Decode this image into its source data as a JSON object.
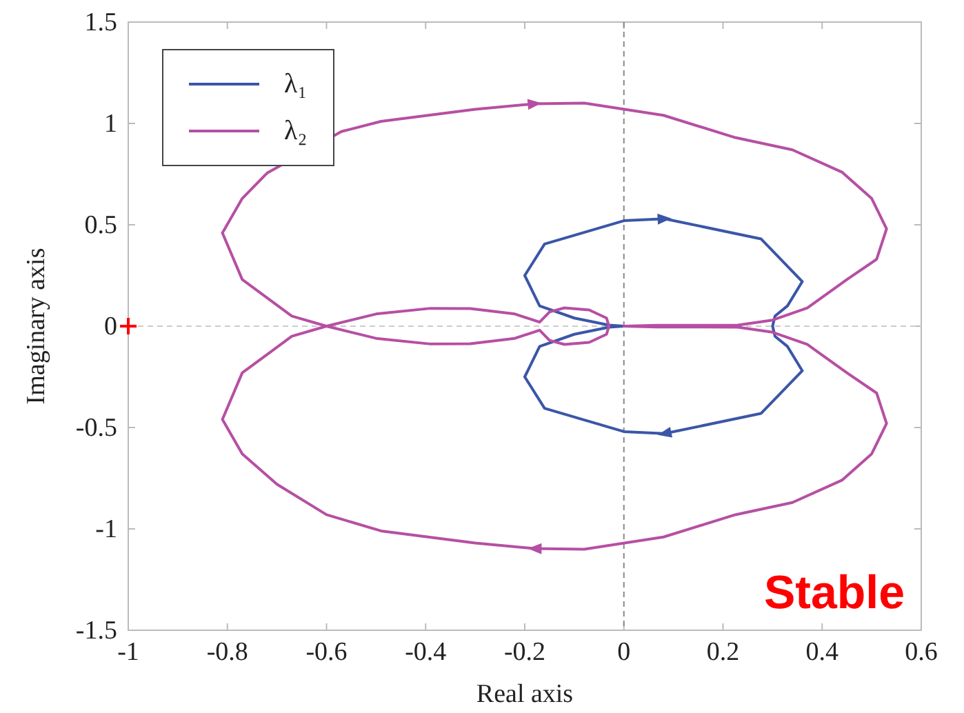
{
  "chart_data": {
    "type": "line",
    "xlabel": "Real axis",
    "ylabel": "Imaginary axis",
    "xlim": [
      -1,
      0.6
    ],
    "ylim": [
      -1.5,
      1.5
    ],
    "xticks": [
      -1,
      -0.8,
      -0.6,
      -0.4,
      -0.2,
      0,
      0.2,
      0.4,
      0.6
    ],
    "yticks": [
      -1.5,
      -1,
      -0.5,
      0,
      0.5,
      1,
      1.5
    ],
    "grid": false,
    "legend": "top left",
    "marker": "none",
    "line_style": "solid",
    "series": [
      {
        "name": "λ₁",
        "color": "#3a56a8",
        "x": [
          0,
          -0.03,
          -0.1,
          -0.17,
          -0.2,
          null,
          -0.2,
          -0.16,
          0,
          0.082,
          0.277,
          0.36,
          null,
          0.36,
          0.33,
          0.305,
          0.3,
          null,
          0.3,
          0.305,
          0.33,
          0.36,
          null,
          0.36,
          0.277,
          0.082,
          0,
          -0.16,
          -0.2,
          null,
          -0.2,
          -0.17,
          -0.1,
          -0.03,
          0
        ],
        "values": [
          0,
          0.005,
          0.04,
          0.1,
          0.25,
          null,
          0.25,
          0.405,
          0.52,
          0.53,
          0.43,
          0.22,
          null,
          0.22,
          0.1,
          0.05,
          0,
          null,
          0,
          -0.05,
          -0.1,
          -0.22,
          null,
          -0.22,
          -0.43,
          -0.53,
          -0.52,
          -0.405,
          -0.25,
          null,
          -0.25,
          -0.1,
          -0.04,
          -0.005,
          0
        ]
      },
      {
        "name": "λ₂",
        "color": "#b64fa3",
        "x": [
          0,
          0.066,
          0.16,
          0.23,
          0.3,
          0.37,
          0.45,
          0.51,
          0.53,
          null,
          0.53,
          0.5,
          0.44,
          0.34,
          0.225,
          0.08,
          -0.08,
          -0.18,
          -0.3,
          -0.49,
          -0.6,
          -0.7,
          -0.77,
          -0.81,
          null,
          -0.81,
          -0.77,
          -0.67,
          -0.6,
          -0.5,
          -0.39,
          -0.31,
          -0.22,
          -0.17,
          -0.15,
          -0.12,
          -0.07,
          -0.035,
          -0.03,
          null,
          -0.03,
          -0.035,
          -0.07,
          -0.12,
          -0.15,
          -0.17,
          -0.22,
          -0.31,
          -0.39,
          -0.5,
          -0.6,
          -0.67,
          -0.77,
          -0.81,
          null,
          -0.81,
          -0.77,
          -0.72,
          -0.57,
          -0.49,
          -0.3,
          -0.18,
          -0.08,
          0.08,
          0.225,
          0.34,
          0.44,
          0.5,
          0.53,
          null,
          0.53,
          0.51,
          0.45,
          0.37,
          0.3,
          0.23,
          0.16,
          0.066,
          0
        ],
        "values": [
          0,
          -0.004,
          -0.004,
          -0.005,
          -0.03,
          -0.09,
          -0.23,
          -0.33,
          -0.48,
          null,
          -0.48,
          -0.63,
          -0.76,
          -0.87,
          -0.93,
          -1.04,
          -1.1,
          -1.097,
          -1.07,
          -1.01,
          -0.93,
          -0.78,
          -0.63,
          -0.46,
          null,
          -0.46,
          -0.23,
          -0.05,
          0,
          0.06,
          0.088,
          0.087,
          0.06,
          0.02,
          0.07,
          0.09,
          0.08,
          0.04,
          0,
          null,
          0,
          -0.04,
          -0.08,
          -0.09,
          -0.07,
          -0.02,
          -0.06,
          -0.087,
          -0.088,
          -0.06,
          0,
          0.05,
          0.23,
          0.46,
          null,
          0.46,
          0.63,
          0.755,
          0.96,
          1.01,
          1.07,
          1.097,
          1.1,
          1.04,
          0.93,
          0.87,
          0.76,
          0.63,
          0.48,
          null,
          0.48,
          0.33,
          0.23,
          0.09,
          0.03,
          0.005,
          0.004,
          0.004,
          0
        ]
      },
      {
        "type": "scatter",
        "color": "#ff0000",
        "marker": "cross",
        "x": [
          -1
        ],
        "values": [
          0
        ]
      }
    ],
    "ref_lines": [
      {
        "axis": "x",
        "value": 0,
        "color": "#888888",
        "line_style": "dashed"
      },
      {
        "axis": "y",
        "value": 0,
        "color": "#cccccc",
        "line_style": "dashed"
      }
    ],
    "annotations": [
      "Stable"
    ]
  }
}
